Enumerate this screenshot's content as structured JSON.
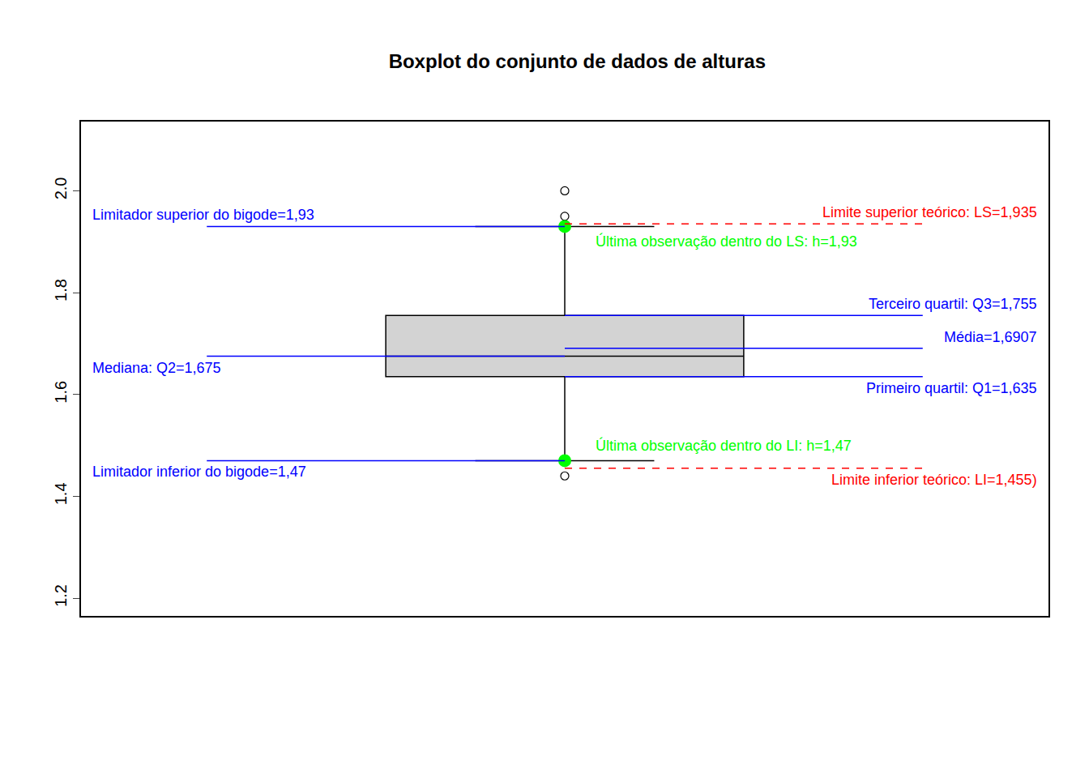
{
  "chart_data": {
    "type": "box",
    "title": "Boxplot do conjunto de dados de alturas",
    "ylim": [
      1.165,
      2.136
    ],
    "yticks": [
      1.2,
      1.4,
      1.6,
      1.8,
      {
        "value": 2,
        "label": "2.0"
      }
    ],
    "tick_labels": "y",
    "grid": false,
    "box": {
      "q1": 1.635,
      "median": 1.675,
      "q3": 1.755,
      "lower_whisker": 1.47,
      "upper_whisker": 1.93,
      "outliers": [
        2.0,
        1.95,
        1.44
      ],
      "color": "#d3d3d3"
    },
    "reference_lines": [
      {
        "label": "Limitador superior do bigode=1,93",
        "value": 1.93,
        "color": "#0000ff",
        "line_style": "solid"
      },
      {
        "label": "Limite superior teórico: LS=1,935",
        "value": 1.935,
        "color": "#ff0000",
        "line_style": "dashed"
      },
      {
        "label": "Terceiro quartil: Q3=1,755",
        "value": 1.755,
        "color": "#0000ff",
        "line_style": "solid"
      },
      {
        "label": "Média=1,6907",
        "value": 1.6907,
        "color": "#0000ff",
        "line_style": "solid"
      },
      {
        "label": "Mediana: Q2=1,675",
        "value": 1.675,
        "color": "#0000ff",
        "line_style": "solid"
      },
      {
        "label": "Primeiro quartil: Q1=1,635",
        "value": 1.635,
        "color": "#0000ff",
        "line_style": "solid"
      },
      {
        "label": "Limitador inferior do bigode=1,47",
        "value": 1.47,
        "color": "#0000ff",
        "line_style": "solid"
      },
      {
        "label": "Limite inferior teórico: LI=1,455)",
        "value": 1.455,
        "color": "#ff0000",
        "line_style": "dashed"
      }
    ],
    "marked_points": [
      {
        "label": "Última observação dentro do LS: h=1,93",
        "value": 1.93,
        "color": "#00ff00"
      },
      {
        "label": "Última observação dentro do LI: h=1,47",
        "value": 1.47,
        "color": "#00ff00"
      }
    ]
  }
}
